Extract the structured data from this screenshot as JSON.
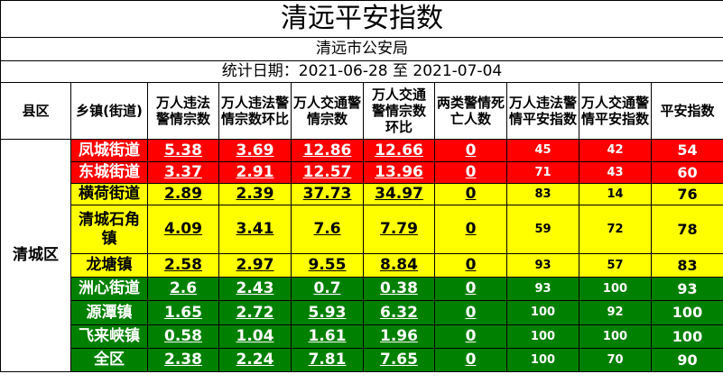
{
  "title": "清远平安指数",
  "subtitle": "清远市公安局",
  "date_line": "统计日期：2021-06-28 至 2021-07-04",
  "table": {
    "header": [
      "县区",
      "乡镇(街道)",
      "万人违法警情宗数",
      "万人违法警情宗数环比",
      "万人交通警情宗数",
      "万人交通警情宗数环比",
      "两类警情死亡人数",
      "万人违法警情平安指数",
      "万人交通警情平安指数",
      "平安指数"
    ],
    "district": "清城区",
    "rows": [
      {
        "town": "凤城街道",
        "color": "#ff0000",
        "values": [
          5.38,
          3.69,
          12.86,
          12.66,
          0,
          45,
          42,
          54
        ]
      },
      {
        "town": "东城街道",
        "color": "#ff0000",
        "values": [
          3.37,
          2.91,
          12.57,
          13.96,
          0,
          71,
          43,
          60
        ]
      },
      {
        "town": "横荷街道",
        "color": "#ffff00",
        "values": [
          2.89,
          2.39,
          37.73,
          34.97,
          0,
          83,
          14,
          76
        ]
      },
      {
        "town": "清城石角镇",
        "color": "#ffff00",
        "values": [
          4.09,
          3.41,
          7.6,
          7.79,
          0,
          59,
          72,
          78
        ]
      },
      {
        "town": "龙塘镇",
        "color": "#ffff00",
        "values": [
          2.58,
          2.97,
          9.55,
          8.84,
          0,
          93,
          57,
          83
        ]
      },
      {
        "town": "洲心街道",
        "color": "#008000",
        "values": [
          2.6,
          2.43,
          0.7,
          0.38,
          0,
          93,
          100,
          93
        ]
      },
      {
        "town": "源潭镇",
        "color": "#008000",
        "values": [
          1.65,
          2.72,
          5.93,
          6.32,
          0,
          100,
          92,
          100
        ]
      },
      {
        "town": "飞来峡镇",
        "color": "#008000",
        "values": [
          0.58,
          1.04,
          1.61,
          1.96,
          0,
          100,
          100,
          100
        ]
      },
      {
        "town": "全区",
        "color": "#008000",
        "values": [
          2.38,
          2.24,
          7.81,
          7.65,
          0,
          100,
          70,
          90
        ]
      }
    ]
  }
}
